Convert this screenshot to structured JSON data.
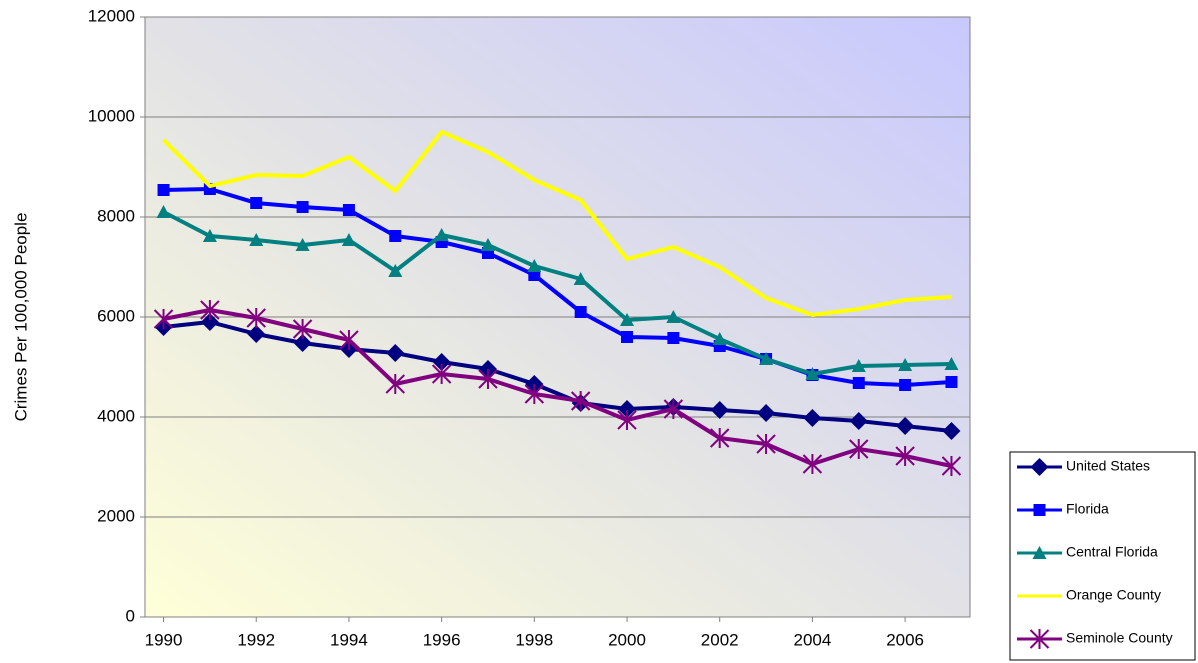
{
  "chart_data": {
    "type": "line",
    "y_label": "Crimes Per 100,000 People",
    "x": [
      1990,
      1991,
      1992,
      1993,
      1994,
      1995,
      1996,
      1997,
      1998,
      1999,
      2000,
      2001,
      2002,
      2003,
      2004,
      2005,
      2006,
      2007
    ],
    "xlim": [
      1989.6,
      2007.4
    ],
    "xticks": [
      1990,
      1992,
      1994,
      1996,
      1998,
      2000,
      2002,
      2004,
      2006
    ],
    "ylim": [
      0,
      12000
    ],
    "yticks": [
      0,
      2000,
      4000,
      6000,
      8000,
      10000,
      12000
    ],
    "grid": true,
    "legend": "right",
    "series": [
      {
        "name": "United States",
        "color": "#000080",
        "marker": "diamond",
        "values": [
          5800,
          5900,
          5660,
          5480,
          5360,
          5280,
          5100,
          4960,
          4660,
          4280,
          4160,
          4200,
          4140,
          4080,
          3980,
          3920,
          3820,
          3720
        ]
      },
      {
        "name": "Florida",
        "color": "#0000ff",
        "marker": "square",
        "values": [
          8540,
          8560,
          8280,
          8200,
          8140,
          7620,
          7500,
          7280,
          6840,
          6100,
          5600,
          5580,
          5420,
          5160,
          4840,
          4680,
          4640,
          4700
        ]
      },
      {
        "name": "Central Florida",
        "color": "#008080",
        "marker": "triangle",
        "values": [
          8100,
          7620,
          7540,
          7440,
          7540,
          6920,
          7640,
          7440,
          7020,
          6760,
          5940,
          6000,
          5560,
          5160,
          4860,
          5020,
          5040,
          5060
        ]
      },
      {
        "name": "Orange County",
        "color": "#ffff00",
        "marker": "none",
        "values": [
          9540,
          8620,
          8840,
          8820,
          9200,
          8520,
          9700,
          9300,
          8740,
          8340,
          7160,
          7400,
          7000,
          6380,
          6040,
          6160,
          6340,
          6400
        ]
      },
      {
        "name": "Seminole County",
        "color": "#800080",
        "marker": "star",
        "values": [
          5960,
          6140,
          5980,
          5760,
          5540,
          4660,
          4860,
          4760,
          4460,
          4320,
          3940,
          4160,
          3580,
          3460,
          3060,
          3360,
          3220,
          3020
        ]
      }
    ]
  }
}
